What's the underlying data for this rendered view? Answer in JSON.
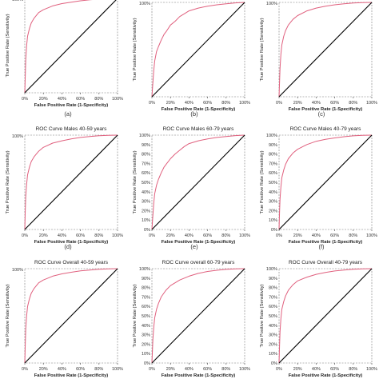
{
  "figure": {
    "panel_captions": [
      "(a)",
      "(b)",
      "(c)",
      "(d)",
      "(e)",
      "(f)"
    ]
  },
  "chart_data": [
    {
      "type": "line",
      "panel": "a",
      "title": "",
      "xlabel": "False Positive Rate (1-Specificity)",
      "ylabel": "True Positive Rate (Sensitivity)",
      "xlim": [
        0,
        100
      ],
      "ylim": [
        0,
        100
      ],
      "x_ticks": [
        "0%",
        "20%",
        "40%",
        "60%",
        "80%",
        "100%"
      ],
      "y_ticks": [
        "100%"
      ],
      "series": [
        {
          "role": "roc",
          "color": "#e0607e",
          "x": [
            0,
            0.5,
            1,
            2,
            3,
            5,
            7,
            10,
            15,
            20,
            30,
            40,
            50,
            60,
            70,
            80,
            90,
            100
          ],
          "y": [
            0,
            18,
            35,
            50,
            60,
            68,
            74,
            79,
            85,
            88,
            92,
            94.5,
            96,
            97.5,
            98.5,
            99.3,
            99.8,
            100
          ]
        },
        {
          "role": "reference",
          "color": "#000000",
          "x": [
            0,
            100
          ],
          "y": [
            0,
            100
          ]
        }
      ]
    },
    {
      "type": "line",
      "panel": "b",
      "title": "",
      "xlabel": "False Positive Rate (1-Specificity)",
      "ylabel": "True Positive Rate (Sensitivity)",
      "xlim": [
        0,
        100
      ],
      "ylim": [
        0,
        100
      ],
      "x_ticks": [
        "0%",
        "20%",
        "40%",
        "60%",
        "80%",
        "100%"
      ],
      "y_ticks": [
        "100%"
      ],
      "series": [
        {
          "role": "roc",
          "color": "#e0607e",
          "x": [
            0,
            1,
            2,
            3,
            5,
            7,
            10,
            13,
            16,
            20,
            25,
            30,
            35,
            40,
            50,
            60,
            70,
            80,
            90,
            100
          ],
          "y": [
            0,
            15,
            28,
            38,
            48,
            53,
            60,
            66,
            70,
            76,
            80,
            85,
            88,
            91,
            94,
            96,
            97.5,
            98.5,
            99.5,
            100
          ]
        },
        {
          "role": "reference",
          "color": "#000000",
          "x": [
            0,
            100
          ],
          "y": [
            0,
            100
          ]
        }
      ]
    },
    {
      "type": "line",
      "panel": "c",
      "title": "",
      "xlabel": "False Positive Rate (1-Specificity)",
      "ylabel": "True Positive Rate (Sensitivity)",
      "xlim": [
        0,
        100
      ],
      "ylim": [
        0,
        100
      ],
      "x_ticks": [
        "0%",
        "20%",
        "40%",
        "60%",
        "80%",
        "100%"
      ],
      "y_ticks": [
        "100%"
      ],
      "series": [
        {
          "role": "roc",
          "color": "#e0607e",
          "x": [
            0,
            0.5,
            1,
            2,
            3,
            5,
            7,
            10,
            15,
            20,
            30,
            40,
            50,
            60,
            70,
            80,
            90,
            100
          ],
          "y": [
            0,
            15,
            30,
            45,
            55,
            64,
            70,
            76,
            82,
            86,
            91,
            94,
            96,
            97.5,
            98.5,
            99.3,
            99.8,
            100
          ]
        },
        {
          "role": "reference",
          "color": "#000000",
          "x": [
            0,
            100
          ],
          "y": [
            0,
            100
          ]
        }
      ]
    },
    {
      "type": "line",
      "panel": "d",
      "title": "ROC Curve Males 40-59 years",
      "xlabel": "False Positive Rate (1-Specificity)",
      "ylabel": "True Positive Rate (Sensitivity)",
      "xlim": [
        0,
        100
      ],
      "ylim": [
        0,
        100
      ],
      "x_ticks": [
        "0%",
        "20%",
        "40%",
        "60%",
        "80%",
        "100%"
      ],
      "y_ticks": [
        "100%"
      ],
      "series": [
        {
          "role": "roc",
          "color": "#e0607e",
          "x": [
            0,
            0.5,
            1,
            2,
            3,
            5,
            7,
            10,
            15,
            20,
            30,
            40,
            50,
            60,
            70,
            80,
            90,
            100
          ],
          "y": [
            0,
            20,
            35,
            48,
            58,
            66,
            72,
            77,
            83,
            87,
            91.5,
            94,
            96,
            97.5,
            98.5,
            99.3,
            99.8,
            100
          ]
        },
        {
          "role": "reference",
          "color": "#000000",
          "x": [
            0,
            100
          ],
          "y": [
            0,
            100
          ]
        }
      ]
    },
    {
      "type": "line",
      "panel": "e",
      "title": "ROC Curve Males 60-79 years",
      "xlabel": "False Positive Rate (1-Specificity)",
      "ylabel": "True Positive Rate (Sensitivity)",
      "xlim": [
        0,
        100
      ],
      "ylim": [
        0,
        100
      ],
      "x_ticks": [
        "0%",
        "20%",
        "40%",
        "60%",
        "80%",
        "100%"
      ],
      "y_ticks": [
        "0%",
        "10%",
        "20%",
        "30%",
        "40%",
        "50%",
        "60%",
        "70%",
        "80%",
        "90%",
        "100%"
      ],
      "series": [
        {
          "role": "roc",
          "color": "#e0607e",
          "x": [
            0,
            1,
            2,
            3,
            5,
            7,
            10,
            13,
            16,
            20,
            25,
            30,
            35,
            40,
            50,
            60,
            70,
            80,
            90,
            100
          ],
          "y": [
            0,
            15,
            28,
            38,
            47,
            53,
            60,
            66,
            70,
            75,
            80,
            84,
            88,
            91,
            94,
            96,
            97.5,
            98.5,
            99.5,
            100
          ]
        },
        {
          "role": "reference",
          "color": "#000000",
          "x": [
            0,
            100
          ],
          "y": [
            0,
            100
          ]
        }
      ]
    },
    {
      "type": "line",
      "panel": "f",
      "title": "ROC Curve Males 40-79 years",
      "xlabel": "False Positive Rate (1-Specificity)",
      "ylabel": "True Positive Rate (Sensitivity)",
      "xlim": [
        0,
        100
      ],
      "ylim": [
        0,
        100
      ],
      "x_ticks": [
        "0%",
        "20%",
        "40%",
        "60%",
        "80%",
        "100%"
      ],
      "y_ticks": [
        "0%",
        "10%",
        "20%",
        "30%",
        "40%",
        "50%",
        "60%",
        "70%",
        "80%",
        "90%",
        "100%"
      ],
      "series": [
        {
          "role": "roc",
          "color": "#e0607e",
          "x": [
            0,
            0.5,
            1,
            2,
            3,
            5,
            7,
            10,
            15,
            20,
            30,
            40,
            50,
            60,
            70,
            80,
            90,
            100
          ],
          "y": [
            0,
            18,
            32,
            45,
            55,
            63,
            69,
            75,
            81,
            85,
            90,
            93.5,
            95.5,
            97,
            98.3,
            99.2,
            99.8,
            100
          ]
        },
        {
          "role": "reference",
          "color": "#000000",
          "x": [
            0,
            100
          ],
          "y": [
            0,
            100
          ]
        }
      ]
    },
    {
      "type": "line",
      "panel": "g",
      "title": "ROC Curve Overall 40-59 years",
      "xlabel": "False Positive Rate (1-Specificity)",
      "ylabel": "True Positive Rate (Sensitivity)",
      "xlim": [
        0,
        100
      ],
      "ylim": [
        0,
        100
      ],
      "x_ticks": [
        "0%",
        "20%",
        "40%",
        "60%",
        "80%",
        "100%"
      ],
      "y_ticks": [
        "100%"
      ],
      "series": [
        {
          "role": "roc",
          "color": "#e0607e",
          "x": [
            0,
            0.5,
            1,
            2,
            3,
            5,
            7,
            10,
            15,
            20,
            30,
            40,
            50,
            60,
            70,
            80,
            90,
            100
          ],
          "y": [
            0,
            20,
            36,
            50,
            60,
            68,
            74,
            79,
            85,
            88,
            92,
            94.5,
            96.2,
            97.6,
            98.6,
            99.3,
            99.8,
            100
          ]
        },
        {
          "role": "reference",
          "color": "#000000",
          "x": [
            0,
            100
          ],
          "y": [
            0,
            100
          ]
        }
      ]
    },
    {
      "type": "line",
      "panel": "h",
      "title": "ROC Curve overall 60-79 years",
      "xlabel": "False Positive Rate (1-Specificity)",
      "ylabel": "True Positive Rate (Sensitivity)",
      "xlim": [
        0,
        100
      ],
      "ylim": [
        0,
        100
      ],
      "x_ticks": [
        "0%",
        "20%",
        "40%",
        "60%",
        "80%",
        "100%"
      ],
      "y_ticks": [
        "0%",
        "10%",
        "20%",
        "30%",
        "40%",
        "50%",
        "60%",
        "70%",
        "80%",
        "90%",
        "100%"
      ],
      "series": [
        {
          "role": "roc",
          "color": "#e0607e",
          "x": [
            0,
            0.5,
            1,
            2,
            3,
            5,
            7,
            10,
            15,
            20,
            30,
            40,
            50,
            60,
            70,
            80,
            90,
            100
          ],
          "y": [
            0,
            12,
            25,
            38,
            48,
            57,
            63,
            70,
            77,
            82,
            88,
            92,
            95,
            97,
            98.3,
            99.2,
            99.8,
            100
          ]
        },
        {
          "role": "reference",
          "color": "#000000",
          "x": [
            0,
            100
          ],
          "y": [
            0,
            100
          ]
        }
      ]
    },
    {
      "type": "line",
      "panel": "i",
      "title": "ROC Curve Overall 40-79 years",
      "xlabel": "False Positive Rate (1-Specificity)",
      "ylabel": "True Positive Rate (Sensitivity)",
      "xlim": [
        0,
        100
      ],
      "ylim": [
        0,
        100
      ],
      "x_ticks": [
        "0%",
        "20%",
        "40%",
        "60%",
        "80%",
        "100%"
      ],
      "y_ticks": [
        "0%",
        "10%",
        "20%",
        "30%",
        "40%",
        "50%",
        "60%",
        "70%",
        "80%",
        "90%",
        "100%"
      ],
      "series": [
        {
          "role": "roc",
          "color": "#e0607e",
          "x": [
            0,
            0.5,
            1,
            2,
            3,
            5,
            7,
            10,
            15,
            20,
            30,
            40,
            50,
            60,
            70,
            80,
            90,
            100
          ],
          "y": [
            0,
            18,
            33,
            47,
            57,
            65,
            71,
            77,
            83,
            87,
            91,
            94,
            96,
            97.5,
            98.5,
            99.3,
            99.8,
            100
          ]
        },
        {
          "role": "reference",
          "color": "#000000",
          "x": [
            0,
            100
          ],
          "y": [
            0,
            100
          ]
        }
      ]
    }
  ]
}
